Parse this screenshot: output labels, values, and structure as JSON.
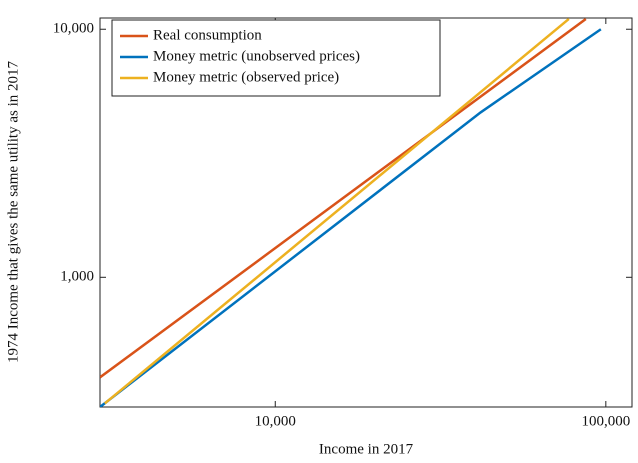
{
  "chart_data": {
    "type": "line",
    "x_label": "Income in 2017",
    "y_label": "1974 Income that gives the same utility as in 2017",
    "x_log": true,
    "y_log": true,
    "grid": false,
    "legend": "upper left",
    "xlim": [
      2950,
      120000
    ],
    "xticks": [
      {
        "value": 10000,
        "label": "10,000"
      },
      {
        "value": 100000,
        "label": "100,000"
      }
    ],
    "ylim": [
      300,
      11100
    ],
    "yticks": [
      {
        "value": 1000,
        "label": "1,000"
      },
      {
        "value": 10000,
        "label": "10,000"
      }
    ],
    "series": [
      {
        "name": "Real consumption",
        "color": "#d95319",
        "x": [
          2950,
          87000
        ],
        "values": [
          395,
          11000
        ]
      },
      {
        "name": "Money metric (unobserved prices)",
        "color": "#0072bd",
        "x": [
          2950,
          41800,
          96600
        ],
        "values": [
          300,
          4620,
          10000
        ]
      },
      {
        "name": "Money metric (observed price)",
        "color": "#edb120",
        "x": [
          3050,
          77300
        ],
        "values": [
          310,
          11000
        ]
      }
    ]
  }
}
